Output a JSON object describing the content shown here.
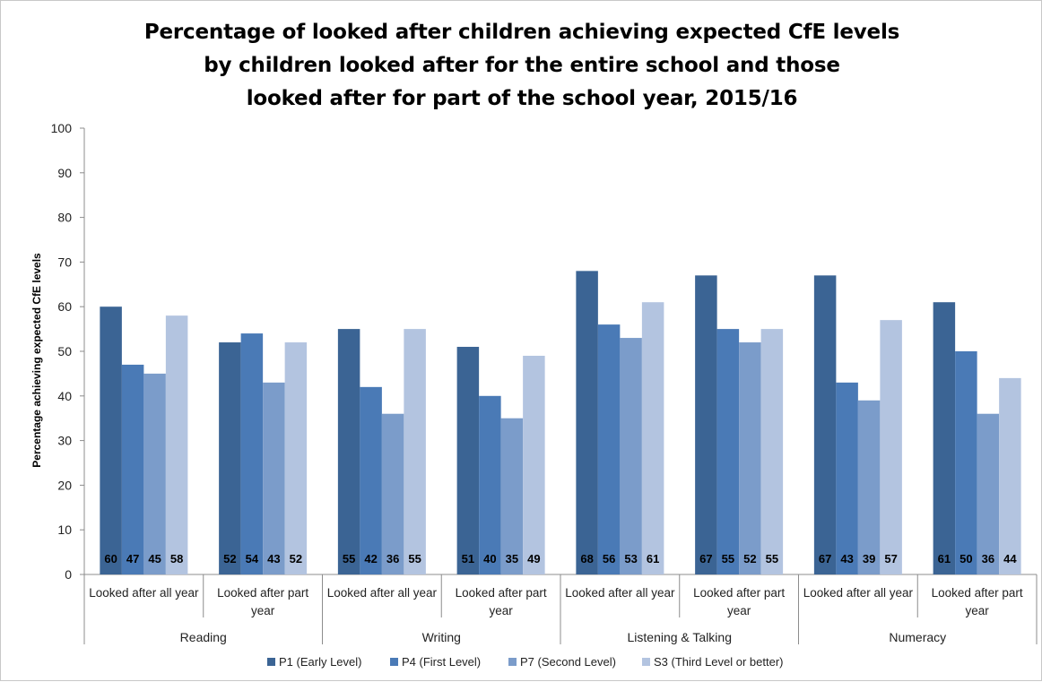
{
  "chart_data": {
    "type": "bar",
    "title_lines": [
      "Percentage of looked after children achieving expected CfE levels",
      "by children looked after for the entire school and those",
      "looked after for part of the school year, 2015/16"
    ],
    "ylabel": "Percentage achieving expected CfE levels",
    "xlabel": "",
    "ylim": [
      0,
      100
    ],
    "yticks": [
      "0",
      "10",
      "20",
      "30",
      "40",
      "50",
      "60",
      "70",
      "80",
      "90",
      "100"
    ],
    "groups": [
      "Reading",
      "Writing",
      "Listening & Talking",
      "Numeracy"
    ],
    "subcategories": [
      [
        "Looked after all year"
      ],
      [
        "Looked after part",
        "year"
      ]
    ],
    "categories": [
      "Reading | Looked after all year",
      "Reading | Looked after part year",
      "Writing | Looked after all year",
      "Writing | Looked after part year",
      "Listening & Talking | Looked after all year",
      "Listening & Talking | Looked after part year",
      "Numeracy | Looked after all year",
      "Numeracy | Looked after part year"
    ],
    "series": [
      {
        "name": "P1 (Early Level)",
        "color": "#3b6494",
        "values": [
          60,
          52,
          55,
          51,
          68,
          67,
          67,
          61
        ]
      },
      {
        "name": "P4 (First Level)",
        "color": "#4a7ab6",
        "values": [
          47,
          54,
          42,
          40,
          56,
          55,
          43,
          50
        ]
      },
      {
        "name": "P7 (Second Level)",
        "color": "#7b9cca",
        "values": [
          45,
          43,
          36,
          35,
          53,
          52,
          39,
          36
        ]
      },
      {
        "name": "S3 (Third Level or better)",
        "color": "#b3c4e0",
        "values": [
          58,
          52,
          55,
          49,
          61,
          55,
          57,
          44
        ]
      }
    ],
    "data_labels": true,
    "grid": false,
    "legend_position": "bottom"
  }
}
